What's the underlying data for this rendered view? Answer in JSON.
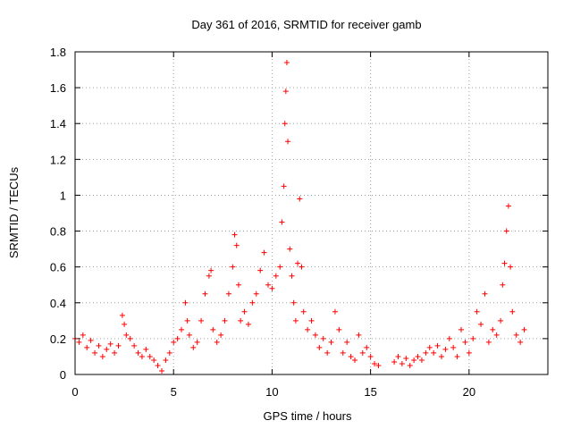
{
  "chart_data": {
    "type": "scatter",
    "title": "Day 361 of 2016, SRMTID for receiver gamb",
    "xlabel": "GPS time / hours",
    "ylabel": "SRMTID / TECUs",
    "xlim": [
      0,
      24
    ],
    "ylim": [
      0,
      1.8
    ],
    "x_ticks": [
      0,
      5,
      10,
      15,
      20
    ],
    "y_ticks": [
      0,
      0.2,
      0.4,
      0.6,
      0.8,
      1,
      1.2,
      1.4,
      1.6,
      1.8
    ],
    "x_tick_labels": [
      "0",
      "5",
      "10",
      "15",
      "20"
    ],
    "y_tick_labels": [
      "0",
      "0.2",
      "0.4",
      "0.6",
      "0.8",
      "1",
      "1.2",
      "1.4",
      "1.6",
      "1.8"
    ],
    "grid": true,
    "marker": "+",
    "color": "#ff0000",
    "series": [
      {
        "name": "SRMTID",
        "points": [
          [
            0.0,
            0.2
          ],
          [
            0.2,
            0.18
          ],
          [
            0.4,
            0.22
          ],
          [
            0.6,
            0.15
          ],
          [
            0.8,
            0.19
          ],
          [
            1.0,
            0.12
          ],
          [
            1.2,
            0.16
          ],
          [
            1.4,
            0.1
          ],
          [
            1.6,
            0.14
          ],
          [
            1.8,
            0.17
          ],
          [
            2.0,
            0.12
          ],
          [
            2.2,
            0.16
          ],
          [
            2.4,
            0.33
          ],
          [
            2.5,
            0.28
          ],
          [
            2.6,
            0.22
          ],
          [
            2.8,
            0.2
          ],
          [
            3.0,
            0.16
          ],
          [
            3.2,
            0.12
          ],
          [
            3.4,
            0.1
          ],
          [
            3.6,
            0.14
          ],
          [
            3.8,
            0.1
          ],
          [
            4.0,
            0.08
          ],
          [
            4.2,
            0.05
          ],
          [
            4.4,
            0.02
          ],
          [
            4.6,
            0.08
          ],
          [
            4.8,
            0.12
          ],
          [
            5.0,
            0.18
          ],
          [
            5.2,
            0.2
          ],
          [
            5.4,
            0.25
          ],
          [
            5.6,
            0.4
          ],
          [
            5.7,
            0.3
          ],
          [
            5.8,
            0.22
          ],
          [
            6.0,
            0.15
          ],
          [
            6.2,
            0.18
          ],
          [
            6.4,
            0.3
          ],
          [
            6.6,
            0.45
          ],
          [
            6.8,
            0.55
          ],
          [
            6.9,
            0.58
          ],
          [
            7.0,
            0.25
          ],
          [
            7.2,
            0.18
          ],
          [
            7.4,
            0.22
          ],
          [
            7.6,
            0.3
          ],
          [
            7.8,
            0.45
          ],
          [
            8.0,
            0.6
          ],
          [
            8.1,
            0.78
          ],
          [
            8.2,
            0.72
          ],
          [
            8.3,
            0.5
          ],
          [
            8.4,
            0.3
          ],
          [
            8.6,
            0.35
          ],
          [
            8.8,
            0.28
          ],
          [
            9.0,
            0.4
          ],
          [
            9.2,
            0.45
          ],
          [
            9.4,
            0.58
          ],
          [
            9.6,
            0.68
          ],
          [
            9.8,
            0.5
          ],
          [
            10.0,
            0.48
          ],
          [
            10.2,
            0.55
          ],
          [
            10.4,
            0.6
          ],
          [
            10.5,
            0.85
          ],
          [
            10.6,
            1.05
          ],
          [
            10.65,
            1.4
          ],
          [
            10.7,
            1.58
          ],
          [
            10.75,
            1.74
          ],
          [
            10.8,
            1.3
          ],
          [
            10.9,
            0.7
          ],
          [
            11.0,
            0.55
          ],
          [
            11.1,
            0.4
          ],
          [
            11.2,
            0.3
          ],
          [
            11.3,
            0.62
          ],
          [
            11.4,
            0.98
          ],
          [
            11.5,
            0.6
          ],
          [
            11.6,
            0.35
          ],
          [
            11.8,
            0.25
          ],
          [
            12.0,
            0.3
          ],
          [
            12.2,
            0.22
          ],
          [
            12.4,
            0.15
          ],
          [
            12.6,
            0.2
          ],
          [
            12.8,
            0.12
          ],
          [
            13.0,
            0.18
          ],
          [
            13.2,
            0.35
          ],
          [
            13.4,
            0.25
          ],
          [
            13.6,
            0.12
          ],
          [
            13.8,
            0.18
          ],
          [
            14.0,
            0.1
          ],
          [
            14.2,
            0.08
          ],
          [
            14.4,
            0.22
          ],
          [
            14.6,
            0.12
          ],
          [
            14.8,
            0.15
          ],
          [
            15.0,
            0.1
          ],
          [
            15.2,
            0.06
          ],
          [
            15.4,
            0.05
          ],
          [
            16.2,
            0.07
          ],
          [
            16.4,
            0.1
          ],
          [
            16.6,
            0.06
          ],
          [
            16.8,
            0.09
          ],
          [
            17.0,
            0.05
          ],
          [
            17.2,
            0.08
          ],
          [
            17.4,
            0.1
          ],
          [
            17.6,
            0.08
          ],
          [
            17.8,
            0.12
          ],
          [
            18.0,
            0.15
          ],
          [
            18.2,
            0.12
          ],
          [
            18.4,
            0.16
          ],
          [
            18.6,
            0.1
          ],
          [
            18.8,
            0.14
          ],
          [
            19.0,
            0.2
          ],
          [
            19.2,
            0.15
          ],
          [
            19.4,
            0.1
          ],
          [
            19.6,
            0.25
          ],
          [
            19.8,
            0.18
          ],
          [
            20.0,
            0.12
          ],
          [
            20.2,
            0.2
          ],
          [
            20.4,
            0.35
          ],
          [
            20.6,
            0.28
          ],
          [
            20.8,
            0.45
          ],
          [
            21.0,
            0.18
          ],
          [
            21.2,
            0.25
          ],
          [
            21.4,
            0.22
          ],
          [
            21.6,
            0.3
          ],
          [
            21.7,
            0.5
          ],
          [
            21.8,
            0.62
          ],
          [
            21.9,
            0.8
          ],
          [
            22.0,
            0.94
          ],
          [
            22.1,
            0.6
          ],
          [
            22.2,
            0.35
          ],
          [
            22.4,
            0.22
          ],
          [
            22.6,
            0.18
          ],
          [
            22.8,
            0.25
          ]
        ]
      }
    ]
  }
}
